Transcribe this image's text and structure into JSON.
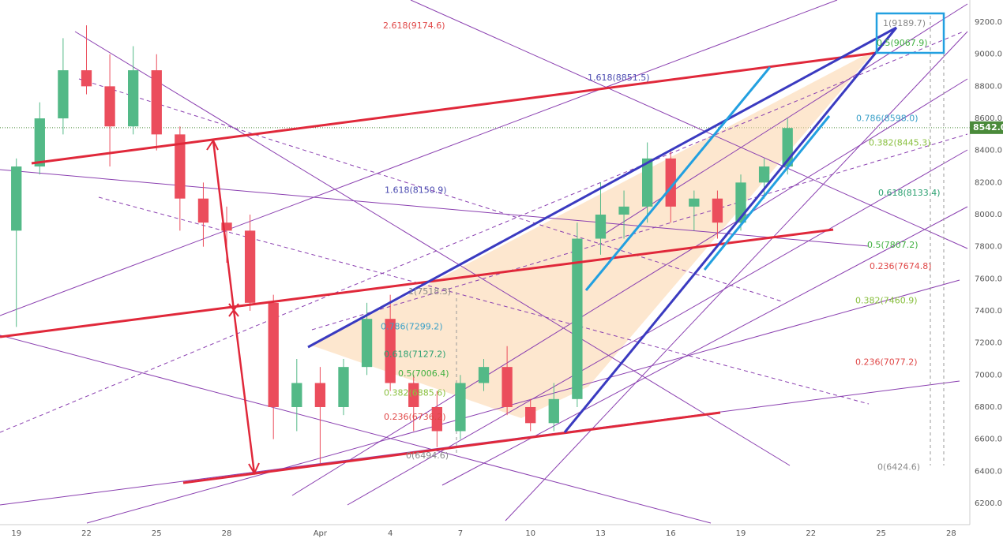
{
  "chart_data": {
    "type": "candlestick",
    "x": [
      0,
      1,
      2,
      3,
      4,
      5,
      6,
      7,
      8,
      9,
      10,
      11,
      12,
      13,
      14,
      15,
      16,
      17,
      18,
      19,
      20,
      21,
      22,
      23,
      24,
      25,
      26,
      27,
      28,
      29,
      30,
      31,
      32,
      33
    ],
    "open": [
      7900,
      8300,
      8600,
      8900,
      8800,
      8550,
      8900,
      8500,
      8100,
      7950,
      7900,
      7450,
      6800,
      6950,
      6800,
      7050,
      7350,
      6950,
      6800,
      6650,
      6950,
      7050,
      6800,
      6700,
      6850,
      7850,
      8000,
      8050,
      8350,
      8050,
      8100,
      7950,
      8200,
      8300
    ],
    "high": [
      8350,
      8700,
      9100,
      9180,
      9000,
      9050,
      9000,
      8550,
      8200,
      8050,
      8000,
      7500,
      7100,
      7050,
      7100,
      7450,
      7500,
      7000,
      6900,
      7000,
      7100,
      7180,
      6850,
      6950,
      7950,
      8200,
      8150,
      8450,
      8400,
      8150,
      8150,
      8250,
      8350,
      8600
    ],
    "low": [
      7300,
      8250,
      8500,
      8750,
      8300,
      8500,
      8400,
      7900,
      7800,
      7700,
      7400,
      6600,
      6650,
      6450,
      6750,
      7000,
      6900,
      6650,
      6550,
      6600,
      6900,
      6750,
      6650,
      6650,
      6800,
      7750,
      7850,
      7950,
      7950,
      7900,
      7850,
      7900,
      8100,
      8250
    ],
    "close": [
      8300,
      8600,
      8900,
      8800,
      8550,
      8900,
      8500,
      8100,
      7950,
      7900,
      7450,
      6800,
      6950,
      6800,
      7050,
      7350,
      6950,
      6800,
      6650,
      6950,
      7050,
      6800,
      6700,
      6850,
      7850,
      8000,
      8050,
      8350,
      8050,
      8100,
      7950,
      8200,
      8300,
      8540
    ],
    "up_color": "#53b987",
    "down_color": "#eb4d5c",
    "xlim": [
      -0.7,
      40.8
    ],
    "xticks": [
      {
        "value": 0,
        "label": "19"
      },
      {
        "value": 3,
        "label": "22"
      },
      {
        "value": 6,
        "label": "25"
      },
      {
        "value": 9,
        "label": "28"
      },
      {
        "value": 13,
        "label": "Apr"
      },
      {
        "value": 16,
        "label": "4"
      },
      {
        "value": 19,
        "label": "7"
      },
      {
        "value": 22,
        "label": "10"
      },
      {
        "value": 25,
        "label": "13"
      },
      {
        "value": 28,
        "label": "16"
      },
      {
        "value": 31,
        "label": "19"
      },
      {
        "value": 34,
        "label": "22"
      },
      {
        "value": 37,
        "label": "25"
      },
      {
        "value": 40,
        "label": "28"
      }
    ],
    "ylim": [
      6067,
      9338
    ],
    "yticks": [
      {
        "value": 6200,
        "label": "6200.0"
      },
      {
        "value": 6400,
        "label": "6400.0"
      },
      {
        "value": 6600,
        "label": "6600.0"
      },
      {
        "value": 6800,
        "label": "6800.0"
      },
      {
        "value": 7000,
        "label": "7000.0"
      },
      {
        "value": 7200,
        "label": "7200.0"
      },
      {
        "value": 7400,
        "label": "7400.0"
      },
      {
        "value": 7600,
        "label": "7600.0"
      },
      {
        "value": 7800,
        "label": "7800.0"
      },
      {
        "value": 8000,
        "label": "8000.0"
      },
      {
        "value": 8200,
        "label": "8200.0"
      },
      {
        "value": 8400,
        "label": "8400.0"
      },
      {
        "value": 8600,
        "label": "8600.0"
      },
      {
        "value": 8800,
        "label": "8800.0"
      },
      {
        "value": 9000,
        "label": "9000.0"
      },
      {
        "value": 9200,
        "label": "9200.0"
      }
    ],
    "grid": true,
    "last_price": {
      "value": 8542,
      "label": "8542.0",
      "color": "#4a8a3a"
    },
    "annotations": [
      {
        "label": "2.618(9174.6)",
        "value": 9174.6,
        "color": "#e04848"
      },
      {
        "label": "1.618(8851.5)",
        "value": 8851.5,
        "color": "#4a4ab0"
      },
      {
        "label": "1.618(8150.9)",
        "value": 8150.9,
        "color": "#4a4ab0"
      },
      {
        "label": "1(7518.3)",
        "value": 7518.3,
        "color": "#888888"
      },
      {
        "label": "0.786(7299.2)",
        "value": 7299.2,
        "color": "#3aa0c8"
      },
      {
        "label": "0.618(7127.2)",
        "value": 7127.2,
        "color": "#2aa070"
      },
      {
        "label": "0.5(7006.4)",
        "value": 7006.4,
        "color": "#40b040"
      },
      {
        "label": "0.382(6885.6)",
        "value": 6885.6,
        "color": "#8ac040"
      },
      {
        "label": "0.236(6736.2)",
        "value": 6736.2,
        "color": "#e04848"
      },
      {
        "label": "0(6494.6)",
        "value": 6494.6,
        "color": "#888888"
      },
      {
        "label": "1(9189.7)",
        "value": 9189.7,
        "color": "#888888"
      },
      {
        "label": "0.5(9067.9)",
        "value": 9067.9,
        "color": "#40b040"
      },
      {
        "label": "0.786(8598.0)",
        "value": 8598.0,
        "color": "#3aa0c8"
      },
      {
        "label": "0.382(8445.3)",
        "value": 8445.3,
        "color": "#8ac040"
      },
      {
        "label": "0.618(8133.4)",
        "value": 8133.4,
        "color": "#2aa070"
      },
      {
        "label": "0.5(7807.2)",
        "value": 7807.2,
        "color": "#40b040"
      },
      {
        "label": "0.236(7674.8)",
        "value": 7674.8,
        "color": "#e04848"
      },
      {
        "label": "0.382(7460.9)",
        "value": 7460.9,
        "color": "#8ac040"
      },
      {
        "label": "0.236(7077.2)",
        "value": 7077.2,
        "color": "#e04848"
      },
      {
        "label": "0(6424.6)",
        "value": 6424.6,
        "color": "#888888"
      }
    ]
  }
}
